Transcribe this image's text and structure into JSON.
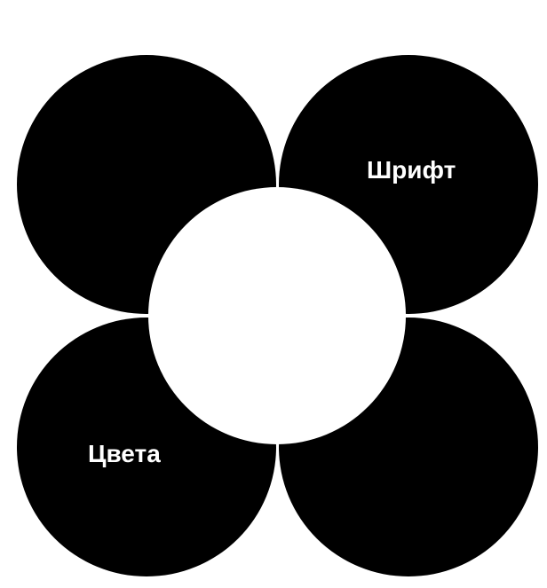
{
  "petals": {
    "top_left": {
      "label": ""
    },
    "top_right": {
      "label": "Шрифт"
    },
    "bottom_left": {
      "label": "Цвета"
    },
    "bottom_right": {
      "label": ""
    }
  },
  "colors": {
    "petal": "#000000",
    "center": "#ffffff",
    "label": "#ffffff",
    "background": "#ffffff"
  }
}
